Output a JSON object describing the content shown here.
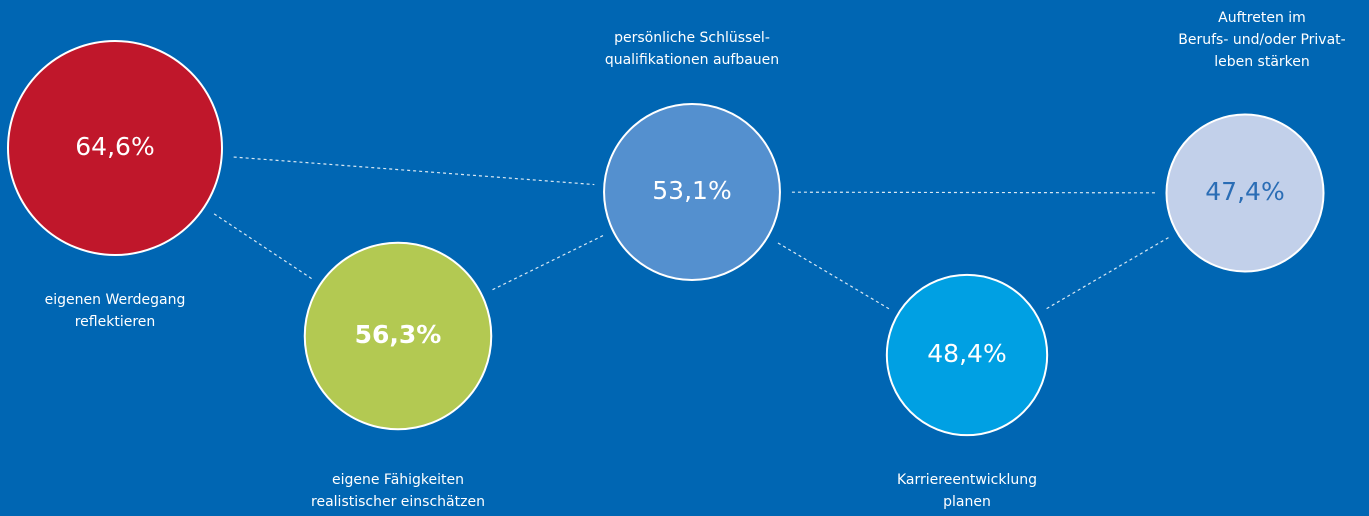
{
  "chart_data": {
    "type": "bubble",
    "categories": [
      [
        "eigenen Werdegang",
        "reflektieren"
      ],
      [
        "eigene Fähigkeiten",
        "realistischer einschätzen"
      ],
      [
        "persönliche Schlüssel-",
        "qualifikationen aufbauen"
      ],
      [
        "Karriereentwicklung",
        "planen"
      ],
      [
        "Auftreten im",
        "Berufs- und/oder Privat-",
        "leben stärken"
      ]
    ],
    "values": [
      64.6,
      56.3,
      53.1,
      48.4,
      47.4
    ],
    "value_labels": [
      "64,6%",
      "56,3%",
      "53,1%",
      "48,4%",
      "47,4%"
    ],
    "colors": [
      "#c0172b",
      "#b3c952",
      "#5490cf",
      "#00a0e3",
      "#c2d0ea"
    ],
    "label_colors": [
      "#ffffff",
      "#ffffff",
      "#ffffff",
      "#ffffff",
      "#2a6db5"
    ]
  }
}
